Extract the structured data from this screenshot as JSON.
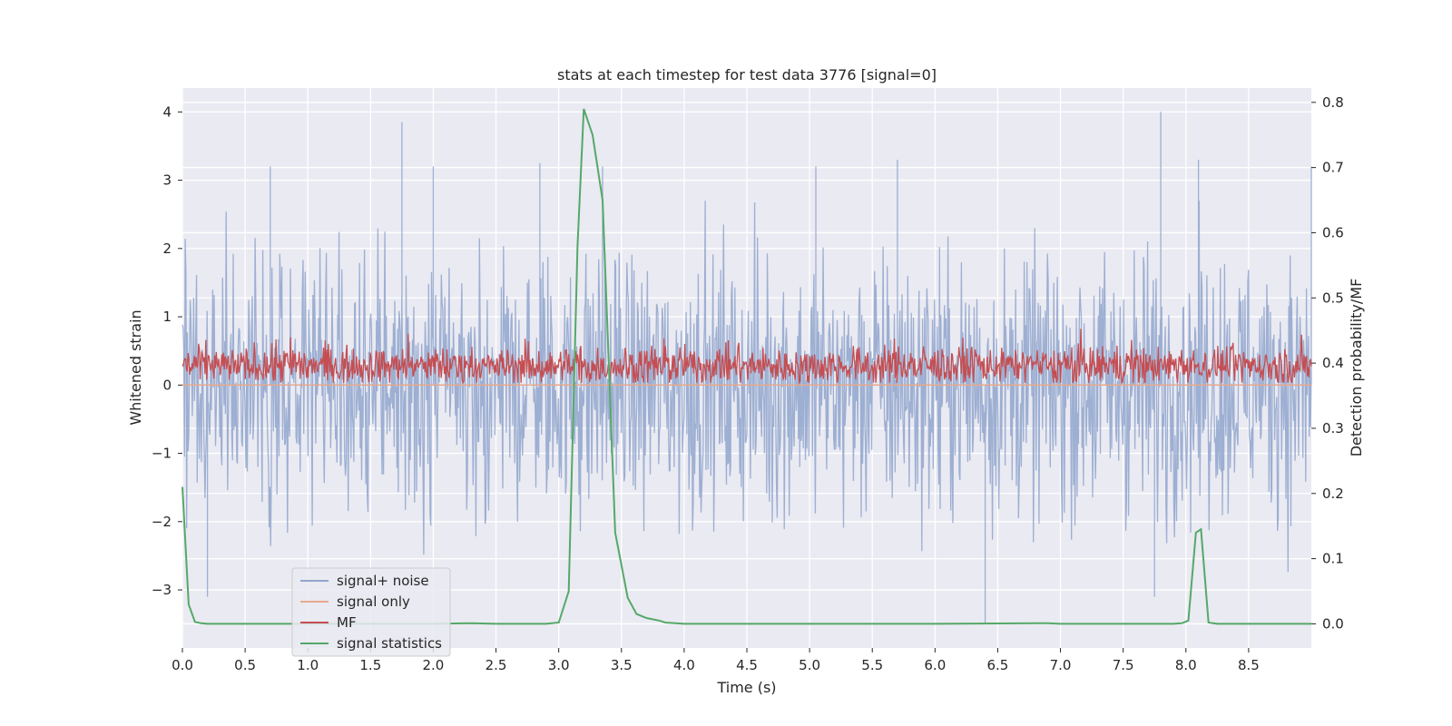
{
  "chart_data": {
    "type": "line",
    "title": "stats at each timestep for test data 3776 [signal=0]",
    "xlabel": "Time (s)",
    "ylabel": "Whitened strain",
    "y2label": "Detection probability/MF",
    "xlim": [
      0.0,
      9.0
    ],
    "ylim": [
      -3.85,
      4.35
    ],
    "y2lim": [
      -0.037,
      0.822
    ],
    "xticks": [
      0.0,
      0.5,
      1.0,
      1.5,
      2.0,
      2.5,
      3.0,
      3.5,
      4.0,
      4.5,
      5.0,
      5.5,
      6.0,
      6.5,
      7.0,
      7.5,
      8.0,
      8.5
    ],
    "xtick_labels": [
      "0.0",
      "0.5",
      "1.0",
      "1.5",
      "2.0",
      "2.5",
      "3.0",
      "3.5",
      "4.0",
      "4.5",
      "5.0",
      "5.5",
      "6.0",
      "6.5",
      "7.0",
      "7.5",
      "8.0",
      "8.5"
    ],
    "yticks": [
      -3,
      -2,
      -1,
      0,
      1,
      2,
      3,
      4
    ],
    "ytick_labels": [
      "−3",
      "−2",
      "−1",
      "0",
      "1",
      "2",
      "3",
      "4"
    ],
    "y2ticks": [
      0.0,
      0.1,
      0.2,
      0.3,
      0.4,
      0.5,
      0.6,
      0.7,
      0.8
    ],
    "y2tick_labels": [
      "0.0",
      "0.1",
      "0.2",
      "0.3",
      "0.4",
      "0.5",
      "0.6",
      "0.7",
      "0.8"
    ],
    "legend_position": "lower-left",
    "series": [
      {
        "name": "signal+ noise",
        "color": "#8fa5cc",
        "axis": "left",
        "kind": "noise",
        "amplitude_range": [
          -3.5,
          4.0
        ],
        "notable_peaks": [
          {
            "t": 1.75,
            "y": 3.85
          },
          {
            "t": 2.0,
            "y": 3.2
          },
          {
            "t": 0.7,
            "y": 3.2
          },
          {
            "t": 2.85,
            "y": 3.25
          },
          {
            "t": 3.35,
            "y": 3.2
          },
          {
            "t": 5.05,
            "y": 3.2
          },
          {
            "t": 5.7,
            "y": 3.3
          },
          {
            "t": 7.8,
            "y": 4.0
          },
          {
            "t": 8.1,
            "y": 3.3
          },
          {
            "t": 9.0,
            "y": 3.2
          },
          {
            "t": 0.2,
            "y": -3.1
          },
          {
            "t": 6.4,
            "y": -3.5
          },
          {
            "t": 7.75,
            "y": -3.1
          }
        ]
      },
      {
        "name": "signal only",
        "color": "#e8a98c",
        "axis": "left",
        "kind": "flat",
        "value": 0.0
      },
      {
        "name": "MF",
        "color": "#c44e52",
        "axis": "right",
        "kind": "noise",
        "amplitude_range": [
          0.37,
          0.47
        ]
      },
      {
        "name": "signal statistics",
        "color": "#55a868",
        "axis": "right",
        "kind": "line",
        "x": [
          0.0,
          0.05,
          0.1,
          0.15,
          0.2,
          0.3,
          1.0,
          2.0,
          2.3,
          2.5,
          2.9,
          3.0,
          3.08,
          3.15,
          3.2,
          3.27,
          3.35,
          3.45,
          3.55,
          3.62,
          3.7,
          3.8,
          3.85,
          4.0,
          5.0,
          6.0,
          6.9,
          7.0,
          7.9,
          7.97,
          8.02,
          8.08,
          8.12,
          8.18,
          8.25,
          8.5,
          9.0
        ],
        "y": [
          0.21,
          0.03,
          0.003,
          0.001,
          0.0,
          0.0,
          0.0,
          0.0,
          0.001,
          0.0,
          0.0,
          0.002,
          0.05,
          0.58,
          0.79,
          0.75,
          0.65,
          0.14,
          0.04,
          0.015,
          0.009,
          0.005,
          0.002,
          0.0,
          0.0,
          0.0,
          0.001,
          0.0,
          0.0,
          0.001,
          0.005,
          0.14,
          0.145,
          0.002,
          0.0,
          0.0,
          0.0
        ]
      }
    ]
  }
}
